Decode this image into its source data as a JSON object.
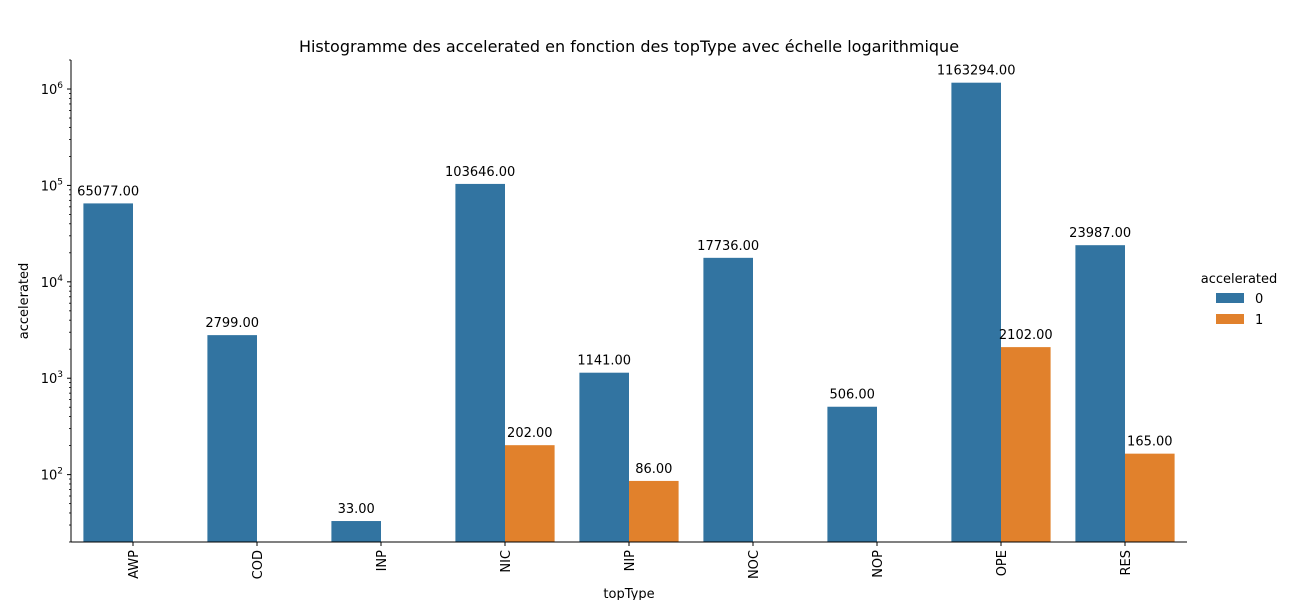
{
  "chart_data": {
    "type": "bar",
    "title": "Histogramme des accelerated en fonction des topType avec échelle logarithmique",
    "xlabel": "topType",
    "ylabel": "accelerated",
    "yscale": "log",
    "ylim": [
      20,
      2000000
    ],
    "y_ticks": [
      {
        "base": "10",
        "exp": "2"
      },
      {
        "base": "10",
        "exp": "3"
      },
      {
        "base": "10",
        "exp": "4"
      },
      {
        "base": "10",
        "exp": "5"
      },
      {
        "base": "10",
        "exp": "6"
      }
    ],
    "categories": [
      "AWP",
      "COD",
      "INP",
      "NIC",
      "NIP",
      "NOC",
      "NOP",
      "OPE",
      "RES"
    ],
    "series": [
      {
        "name": "0",
        "color": "#3274a1",
        "values": [
          65077,
          2799,
          33,
          103646,
          1141,
          17736,
          506,
          1163294,
          23987
        ],
        "labels": [
          "65077.00",
          "2799.00",
          "33.00",
          "103646.00",
          "1141.00",
          "17736.00",
          "506.00",
          "1163294.00",
          "23987.00"
        ]
      },
      {
        "name": "1",
        "color": "#e1812c",
        "values": [
          null,
          null,
          null,
          202,
          86,
          null,
          null,
          2102,
          165
        ],
        "labels": [
          null,
          null,
          null,
          "202.00",
          "86.00",
          null,
          null,
          "2102.00",
          "165.00"
        ]
      }
    ],
    "legend": {
      "title": "accelerated",
      "placement": "right"
    },
    "grid": false
  }
}
